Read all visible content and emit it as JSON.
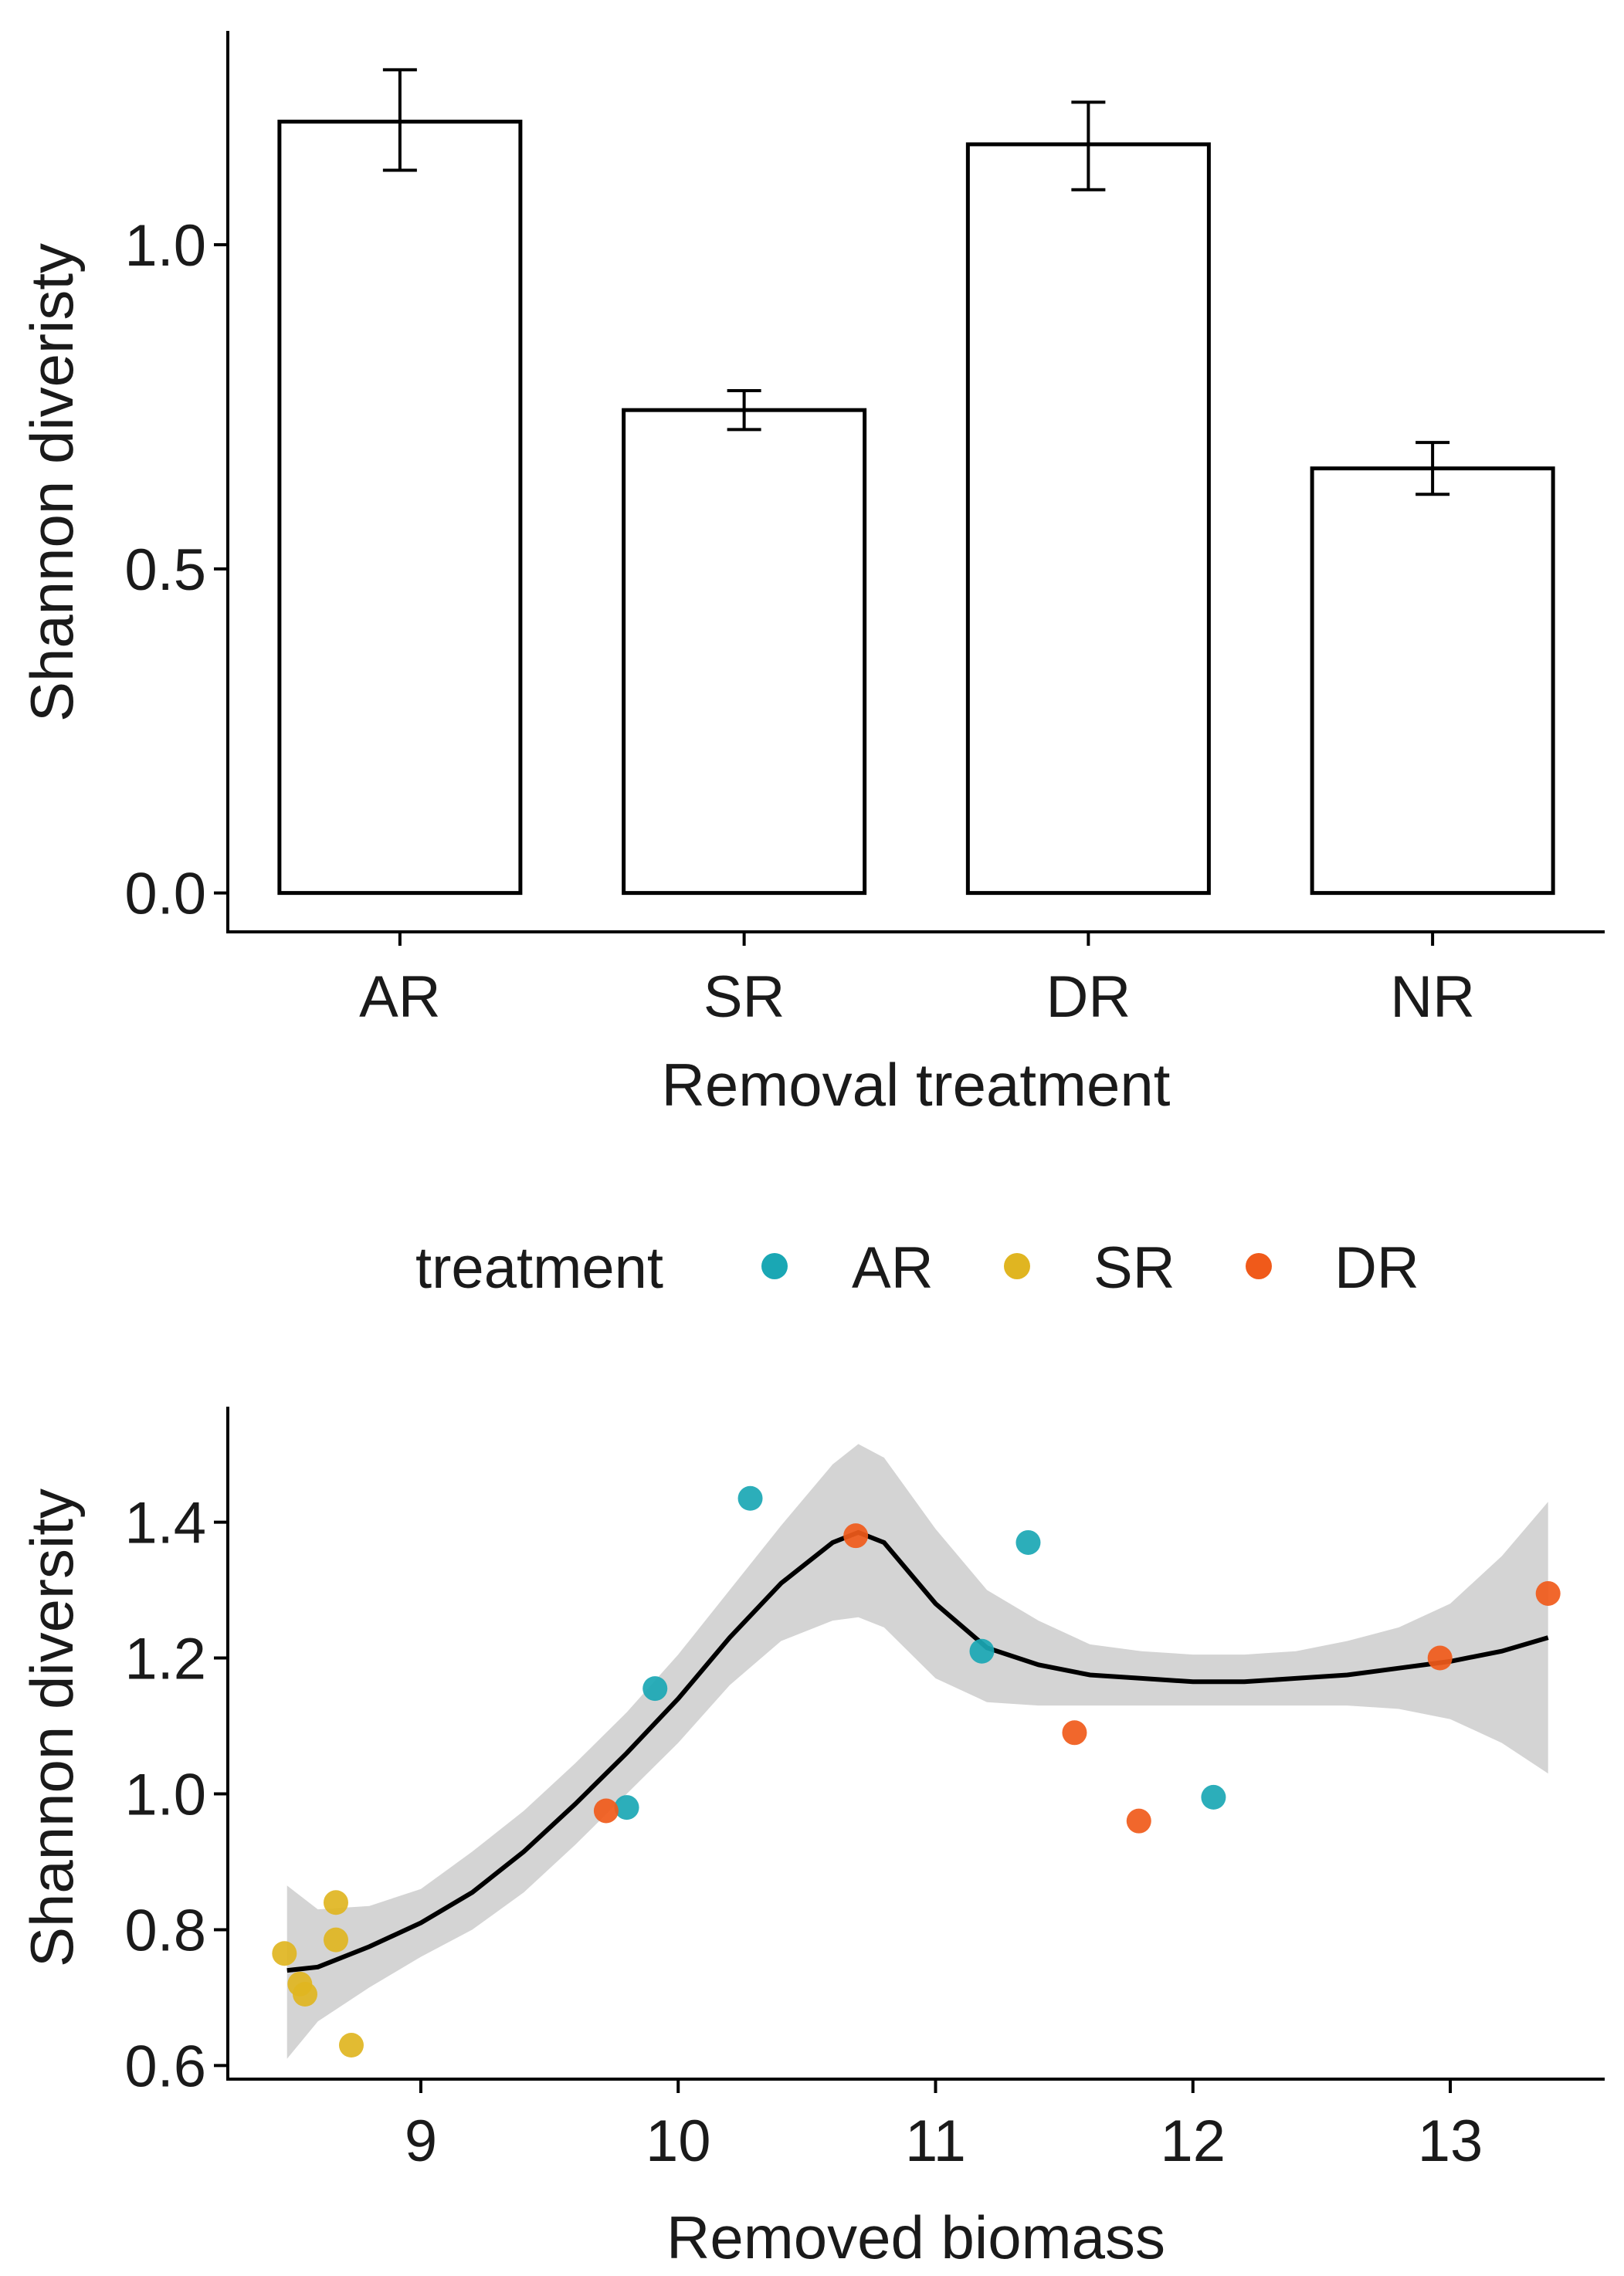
{
  "figure": {
    "legend": {
      "title": "treatment",
      "entries": [
        {
          "label": "AR",
          "color": "#1AA7B4"
        },
        {
          "label": "SR",
          "color": "#E0B521"
        },
        {
          "label": "DR",
          "color": "#F05A1A"
        }
      ]
    }
  },
  "chart_data": [
    {
      "type": "bar",
      "title": "",
      "xlabel": "Removal treatment",
      "ylabel": "Shannon diveristy",
      "categories": [
        "AR",
        "SR",
        "DR",
        "NR"
      ],
      "values": [
        1.19,
        0.745,
        1.155,
        0.655
      ],
      "error_low": [
        1.115,
        0.715,
        1.085,
        0.615
      ],
      "error_high": [
        1.27,
        0.775,
        1.22,
        0.695
      ],
      "ylim": [
        -0.06,
        1.33
      ],
      "yticks": [
        0.0,
        0.5,
        1.0
      ],
      "ytick_labels": [
        "0.0",
        "0.5",
        "1.0"
      ],
      "grid": false
    },
    {
      "type": "scatter",
      "title": "",
      "xlabel": "Removed biomass",
      "ylabel": "Shannon diversity",
      "xlim": [
        8.25,
        13.6
      ],
      "ylim": [
        0.58,
        1.57
      ],
      "xticks": [
        9,
        10,
        11,
        12,
        13
      ],
      "xtick_labels": [
        "9",
        "10",
        "11",
        "12",
        "13"
      ],
      "yticks": [
        0.6,
        0.8,
        1.0,
        1.2,
        1.4
      ],
      "ytick_labels": [
        "0.6",
        "0.8",
        "1.0",
        "1.2",
        "1.4"
      ],
      "grid": false,
      "series": [
        {
          "name": "AR",
          "color": "#1AA7B4",
          "points": [
            [
              10.28,
              1.435
            ],
            [
              11.36,
              1.37
            ],
            [
              9.91,
              1.155
            ],
            [
              11.18,
              1.21
            ],
            [
              9.8,
              0.98
            ],
            [
              12.08,
              0.995
            ]
          ]
        },
        {
          "name": "SR",
          "color": "#E0B521",
          "points": [
            [
              8.47,
              0.765
            ],
            [
              8.67,
              0.84
            ],
            [
              8.67,
              0.785
            ],
            [
              8.53,
              0.72
            ],
            [
              8.55,
              0.705
            ],
            [
              8.73,
              0.63
            ]
          ]
        },
        {
          "name": "DR",
          "color": "#F05A1A",
          "points": [
            [
              10.69,
              1.38
            ],
            [
              9.72,
              0.975
            ],
            [
              11.54,
              1.09
            ],
            [
              11.79,
              0.96
            ],
            [
              12.96,
              1.2
            ],
            [
              13.38,
              1.295
            ]
          ]
        }
      ],
      "smooth_fit": {
        "x": [
          8.48,
          8.6,
          8.8,
          9.0,
          9.2,
          9.4,
          9.6,
          9.8,
          10.0,
          10.2,
          10.4,
          10.6,
          10.7,
          10.8,
          11.0,
          11.2,
          11.4,
          11.6,
          11.8,
          12.0,
          12.2,
          12.4,
          12.6,
          12.8,
          13.0,
          13.2,
          13.38
        ],
        "y": [
          0.74,
          0.745,
          0.775,
          0.81,
          0.855,
          0.915,
          0.985,
          1.06,
          1.14,
          1.23,
          1.31,
          1.37,
          1.385,
          1.37,
          1.28,
          1.215,
          1.19,
          1.175,
          1.17,
          1.165,
          1.165,
          1.17,
          1.175,
          1.185,
          1.195,
          1.21,
          1.23
        ],
        "lower": [
          0.61,
          0.665,
          0.715,
          0.76,
          0.8,
          0.855,
          0.925,
          1.0,
          1.075,
          1.16,
          1.225,
          1.255,
          1.26,
          1.245,
          1.17,
          1.135,
          1.13,
          1.13,
          1.13,
          1.13,
          1.13,
          1.13,
          1.13,
          1.125,
          1.11,
          1.075,
          1.03
        ],
        "upper": [
          0.865,
          0.83,
          0.835,
          0.86,
          0.915,
          0.975,
          1.045,
          1.12,
          1.205,
          1.3,
          1.395,
          1.485,
          1.515,
          1.495,
          1.39,
          1.3,
          1.255,
          1.22,
          1.21,
          1.205,
          1.205,
          1.21,
          1.225,
          1.245,
          1.28,
          1.35,
          1.43
        ]
      }
    }
  ]
}
